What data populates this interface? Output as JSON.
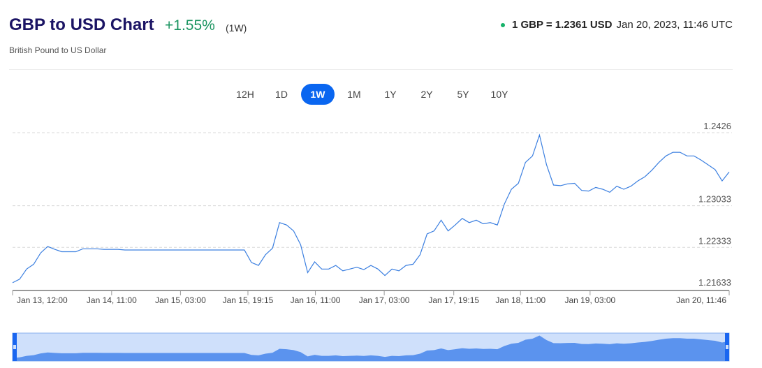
{
  "header": {
    "title": "GBP to USD Chart",
    "change": "+1.55%",
    "period": "(1W)",
    "subtitle": "British Pound to US Dollar",
    "rate": "1 GBP = 1.2361 USD",
    "timestamp": "Jan 20, 2023, 11:46 UTC"
  },
  "ranges": [
    {
      "label": "12H",
      "active": false
    },
    {
      "label": "1D",
      "active": false
    },
    {
      "label": "1W",
      "active": true
    },
    {
      "label": "1M",
      "active": false
    },
    {
      "label": "1Y",
      "active": false
    },
    {
      "label": "2Y",
      "active": false
    },
    {
      "label": "5Y",
      "active": false
    },
    {
      "label": "10Y",
      "active": false
    }
  ],
  "colors": {
    "line": "#3b7fe0",
    "navigator_fill": "#5b93ee",
    "navigator_bg": "#cfe0fb",
    "handle": "#1a66f0",
    "accent": "#0a66f0",
    "positive": "#1a9460"
  },
  "chart_data": {
    "type": "line",
    "title": "",
    "xlabel": "",
    "ylabel": "",
    "ylim": [
      1.21633,
      1.2426
    ],
    "y_ticks": [
      "1.2426",
      "1.23033",
      "1.22333",
      "1.21633"
    ],
    "x_ticks": [
      {
        "label": "Jan 13, 12:00",
        "index": 0
      },
      {
        "label": "Jan 14, 11:00",
        "index": 14.1
      },
      {
        "label": "Jan 15, 03:00",
        "index": 23.9
      },
      {
        "label": "Jan 15, 19:15",
        "index": 33.5
      },
      {
        "label": "Jan 16, 11:00",
        "index": 43.1
      },
      {
        "label": "Jan 17, 03:00",
        "index": 52.9
      },
      {
        "label": "Jan 17, 19:15",
        "index": 62.8
      },
      {
        "label": "Jan 18, 11:00",
        "index": 72.3
      },
      {
        "label": "Jan 19, 03:00",
        "index": 82.2
      },
      {
        "label": "Jan 20, 11:46",
        "index": 102
      }
    ],
    "grid": true,
    "series": [
      {
        "values": [
          1.2174,
          1.218,
          1.2197,
          1.2205,
          1.2224,
          1.2235,
          1.223,
          1.2226,
          1.2226,
          1.2226,
          1.2231,
          1.2231,
          1.2231,
          1.223,
          1.223,
          1.223,
          1.2229,
          1.2229,
          1.2229,
          1.2229,
          1.2229,
          1.2229,
          1.2229,
          1.2229,
          1.2229,
          1.2229,
          1.2229,
          1.2229,
          1.2229,
          1.2229,
          1.2229,
          1.2229,
          1.2229,
          1.2229,
          1.2208,
          1.2203,
          1.2221,
          1.2232,
          1.2275,
          1.2271,
          1.2261,
          1.2238,
          1.2191,
          1.2209,
          1.2197,
          1.2197,
          1.2203,
          1.2194,
          1.2197,
          1.22,
          1.2196,
          1.2203,
          1.2197,
          1.2186,
          1.2197,
          1.2194,
          1.2203,
          1.2205,
          1.2221,
          1.2256,
          1.2261,
          1.2279,
          1.2261,
          1.2271,
          1.2282,
          1.2275,
          1.2279,
          1.2273,
          1.2275,
          1.2271,
          1.2306,
          1.2331,
          1.2341,
          1.2376,
          1.2387,
          1.2422,
          1.2372,
          1.2338,
          1.2337,
          1.234,
          1.2341,
          1.2329,
          1.2328,
          1.2334,
          1.2331,
          1.2326,
          1.2336,
          1.2331,
          1.2336,
          1.2345,
          1.2352,
          1.2363,
          1.2376,
          1.2387,
          1.2393,
          1.2393,
          1.2387,
          1.2387,
          1.238,
          1.2372,
          1.2364,
          1.2345,
          1.236
        ]
      }
    ]
  }
}
